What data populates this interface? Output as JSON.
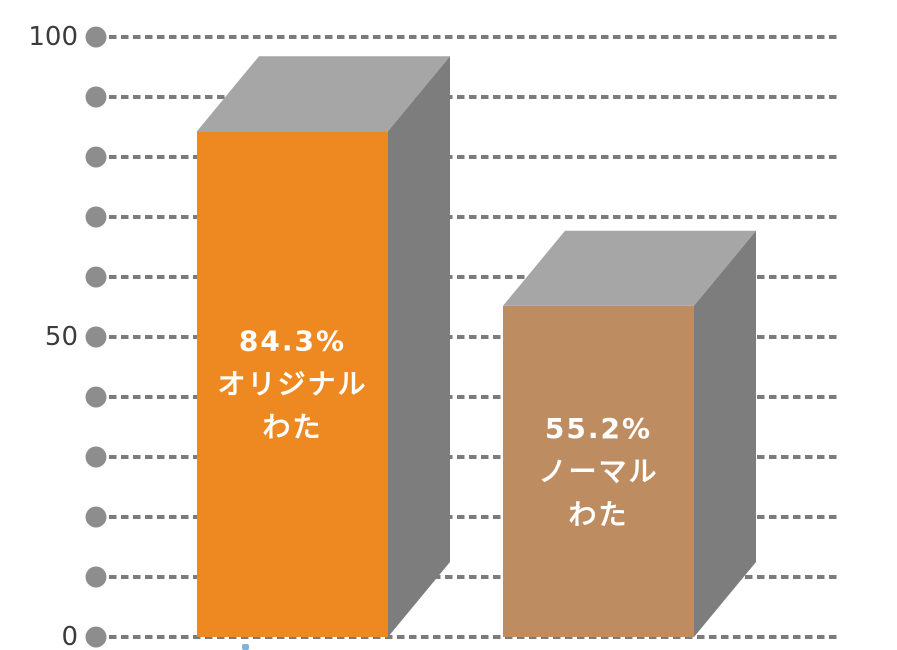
{
  "chart_data": {
    "type": "bar",
    "title": "",
    "xlabel": "",
    "ylabel": "",
    "categories": [
      "オリジナルわた",
      "ノーマルわた"
    ],
    "values": [
      84.3,
      55.2
    ],
    "series": [
      {
        "name": "オリジナルわた",
        "value": 84.3,
        "value_label": "84.3%",
        "label_lines": [
          "84.3%",
          "オリジナル",
          "わた"
        ],
        "color": "#EE8921"
      },
      {
        "name": "ノーマルわた",
        "value": 55.2,
        "value_label": "55.2%",
        "label_lines": [
          "55.2%",
          "ノーマル",
          "わた"
        ],
        "color": "#BE8C61"
      }
    ],
    "ylim": [
      0,
      100
    ],
    "yticks": [
      {
        "value": 100,
        "label": "100"
      },
      {
        "value": 50,
        "label": "50"
      },
      {
        "value": 0,
        "label": "0"
      }
    ],
    "gridlines": {
      "step": 10,
      "count": 11,
      "style": "dashed",
      "dot_markers": true
    },
    "legend": "none",
    "bar_style": "3d-box"
  },
  "colors": {
    "background": "#FFFFFF",
    "bar_top_face": "#A6A6A6",
    "bar_side_face": "#7D7D7D",
    "grid_dot": "#8D8D8D",
    "grid_dash": "#7B7B7B",
    "axis_label": "#3C3C3C",
    "bar_text": "#FFFFFF",
    "caption_fragment": "#7FB2DA"
  },
  "artifacts": {
    "caption_fragment": {
      "description": "top sliver of a cropped caption glyph below the left bar",
      "color": "#7FB2DA"
    }
  }
}
